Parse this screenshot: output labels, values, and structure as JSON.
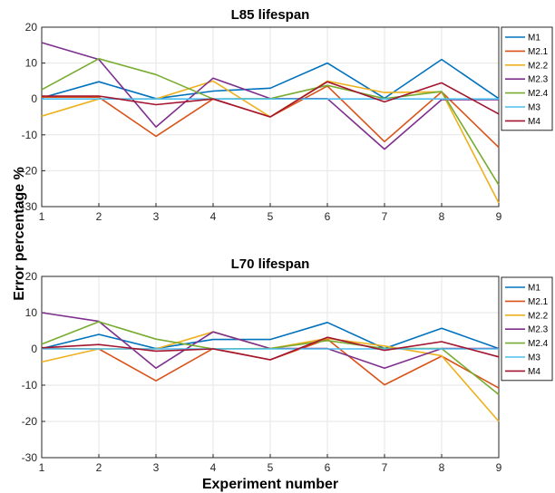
{
  "figure": {
    "ylabel": "Error percentage %",
    "xlabel": "Experiment number"
  },
  "chart_data": [
    {
      "type": "line",
      "title": "L85 lifespan",
      "x": [
        1,
        2,
        3,
        4,
        5,
        6,
        7,
        8,
        9
      ],
      "xlim": [
        1,
        9
      ],
      "ylim": [
        -30,
        20
      ],
      "yticks": [
        -30,
        -20,
        -10,
        0,
        10,
        20
      ],
      "grid": true,
      "legend_position": "right",
      "series": [
        {
          "name": "M1",
          "color": "#0072BD",
          "values": [
            0.3,
            4.8,
            0.1,
            2.2,
            3.0,
            10.0,
            0.2,
            11.0,
            0.1
          ]
        },
        {
          "name": "M2.1",
          "color": "#D95319",
          "values": [
            0.5,
            0.5,
            -10.4,
            0.0,
            -5.0,
            3.6,
            -11.9,
            2.0,
            -13.5
          ]
        },
        {
          "name": "M2.2",
          "color": "#EDB120",
          "values": [
            -4.8,
            0.0,
            0.0,
            5.0,
            -5.0,
            5.0,
            1.8,
            2.0,
            -29.0
          ]
        },
        {
          "name": "M2.3",
          "color": "#7E2F8E",
          "values": [
            15.7,
            11.0,
            -7.8,
            5.8,
            0.1,
            0.1,
            -14.0,
            -0.2,
            -0.2
          ]
        },
        {
          "name": "M2.4",
          "color": "#77AC30",
          "values": [
            2.6,
            11.2,
            6.8,
            0.0,
            0.1,
            3.8,
            0.1,
            2.1,
            -24.0
          ]
        },
        {
          "name": "M3",
          "color": "#4DBEEE",
          "values": [
            0.0,
            0.0,
            0.0,
            0.0,
            0.0,
            0.0,
            0.0,
            0.0,
            0.0
          ]
        },
        {
          "name": "M4",
          "color": "#A2142F",
          "values": [
            0.8,
            0.8,
            -1.6,
            0.0,
            -5.0,
            4.8,
            -0.8,
            4.5,
            -4.2
          ]
        }
      ]
    },
    {
      "type": "line",
      "title": "L70 lifespan",
      "x": [
        1,
        2,
        3,
        4,
        5,
        6,
        7,
        8,
        9
      ],
      "xlim": [
        1,
        9
      ],
      "ylim": [
        -30,
        20
      ],
      "yticks": [
        -30,
        -20,
        -10,
        0,
        10,
        20
      ],
      "grid": true,
      "legend_position": "right",
      "series": [
        {
          "name": "M1",
          "color": "#0072BD",
          "values": [
            0.1,
            4.0,
            0.1,
            2.6,
            2.6,
            7.3,
            0.1,
            5.7,
            0.1
          ]
        },
        {
          "name": "M2.1",
          "color": "#D95319",
          "values": [
            0.1,
            0.0,
            -8.8,
            0.1,
            -3.0,
            2.7,
            -9.9,
            -2.0,
            -10.8
          ]
        },
        {
          "name": "M2.2",
          "color": "#EDB120",
          "values": [
            -3.6,
            0.0,
            0.0,
            4.7,
            0.1,
            2.9,
            0.8,
            -1.9,
            -20.0
          ]
        },
        {
          "name": "M2.3",
          "color": "#7E2F8E",
          "values": [
            10.0,
            7.6,
            -5.3,
            4.7,
            0.1,
            0.1,
            -5.3,
            0.1,
            0.1
          ]
        },
        {
          "name": "M2.4",
          "color": "#77AC30",
          "values": [
            1.3,
            7.5,
            2.7,
            0.0,
            0.1,
            2.3,
            0.1,
            0.1,
            -12.6
          ]
        },
        {
          "name": "M3",
          "color": "#4DBEEE",
          "values": [
            0.0,
            0.0,
            0.0,
            0.0,
            0.0,
            0.0,
            0.0,
            0.0,
            0.0
          ]
        },
        {
          "name": "M4",
          "color": "#A2142F",
          "values": [
            0.3,
            1.2,
            -0.6,
            0.0,
            -3.0,
            3.2,
            -0.4,
            2.0,
            -2.2
          ]
        }
      ]
    }
  ]
}
